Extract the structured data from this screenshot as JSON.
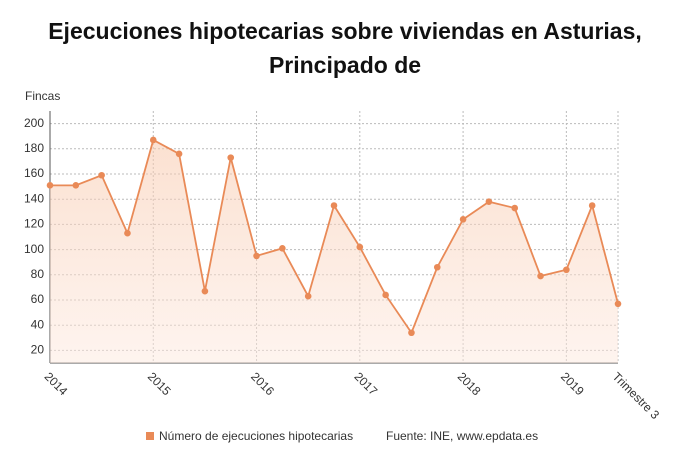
{
  "chart_data": {
    "type": "line",
    "title": "Ejecuciones hipotecarias sobre viviendas en Asturias, Principado de",
    "y_label": "Fincas",
    "source": "Fuente: INE, www.epdata.es",
    "categories": [
      "2014",
      null,
      null,
      null,
      "2015",
      null,
      null,
      null,
      "2016",
      null,
      null,
      null,
      "2017",
      null,
      null,
      null,
      "2018",
      null,
      null,
      null,
      "2019",
      null,
      "Trimestre 3"
    ],
    "series": [
      {
        "name": "Número de ejecuciones hipotecarias",
        "color": "#e98a57",
        "values": [
          151,
          151,
          159,
          113,
          187,
          176,
          67,
          173,
          95,
          101,
          63,
          135,
          102,
          64,
          34,
          86,
          124,
          138,
          133,
          79,
          84,
          135,
          57
        ]
      }
    ],
    "ylim": [
      10,
      210
    ],
    "yticks": [
      20,
      40,
      60,
      80,
      100,
      120,
      140,
      160,
      180,
      200
    ],
    "grid": true
  }
}
